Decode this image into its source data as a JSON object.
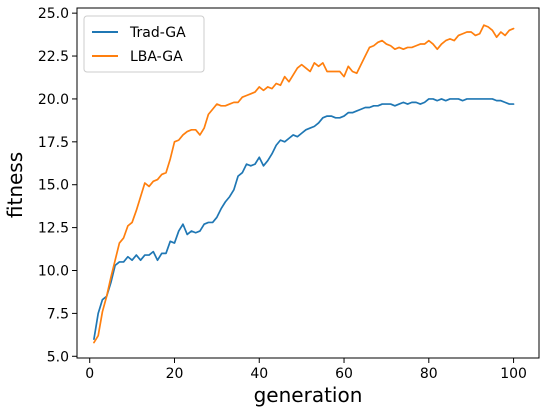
{
  "chart_data": {
    "type": "line",
    "title": "",
    "xlabel": "generation",
    "ylabel": "fitness",
    "xlim": [
      -3,
      106
    ],
    "ylim": [
      4.9,
      25.3
    ],
    "xticks": [
      0,
      20,
      40,
      60,
      80,
      100
    ],
    "yticks": [
      5.0,
      7.5,
      10.0,
      12.5,
      15.0,
      17.5,
      20.0,
      22.5,
      25.0
    ],
    "grid": false,
    "legend": "upper left",
    "x": [
      1,
      2,
      3,
      4,
      5,
      6,
      7,
      8,
      9,
      10,
      11,
      12,
      13,
      14,
      15,
      16,
      17,
      18,
      19,
      20,
      21,
      22,
      23,
      24,
      25,
      26,
      27,
      28,
      29,
      30,
      31,
      32,
      33,
      34,
      35,
      36,
      37,
      38,
      39,
      40,
      41,
      42,
      43,
      44,
      45,
      46,
      47,
      48,
      49,
      50,
      51,
      52,
      53,
      54,
      55,
      56,
      57,
      58,
      59,
      60,
      61,
      62,
      63,
      64,
      65,
      66,
      67,
      68,
      69,
      70,
      71,
      72,
      73,
      74,
      75,
      76,
      77,
      78,
      79,
      80,
      81,
      82,
      83,
      84,
      85,
      86,
      87,
      88,
      89,
      90,
      91,
      92,
      93,
      94,
      95,
      96,
      97,
      98,
      99,
      100
    ],
    "series": [
      {
        "name": "Trad-GA",
        "color": "#1f77b4",
        "values": [
          6.0,
          7.5,
          8.3,
          8.5,
          9.3,
          10.3,
          10.5,
          10.5,
          10.8,
          10.6,
          10.9,
          10.6,
          10.9,
          10.9,
          11.1,
          10.6,
          11.0,
          11.0,
          11.7,
          11.6,
          12.3,
          12.7,
          12.1,
          12.3,
          12.2,
          12.3,
          12.7,
          12.8,
          12.8,
          13.1,
          13.6,
          14.0,
          14.3,
          14.7,
          15.5,
          15.7,
          16.2,
          16.1,
          16.2,
          16.6,
          16.1,
          16.4,
          16.8,
          17.3,
          17.6,
          17.5,
          17.7,
          17.9,
          17.8,
          18.0,
          18.2,
          18.3,
          18.4,
          18.6,
          18.9,
          19.0,
          19.0,
          18.9,
          18.9,
          19.0,
          19.2,
          19.2,
          19.3,
          19.4,
          19.5,
          19.5,
          19.6,
          19.6,
          19.7,
          19.7,
          19.7,
          19.6,
          19.7,
          19.8,
          19.7,
          19.8,
          19.8,
          19.7,
          19.8,
          20.0,
          20.0,
          19.9,
          20.0,
          19.9,
          20.0,
          20.0,
          20.0,
          19.9,
          20.0,
          20.0,
          20.0,
          20.0,
          20.0,
          20.0,
          20.0,
          19.9,
          19.9,
          19.8,
          19.7,
          19.7
        ]
      },
      {
        "name": "LBA-GA",
        "color": "#ff7f0e",
        "values": [
          5.8,
          6.2,
          7.6,
          8.5,
          9.6,
          10.6,
          11.6,
          11.9,
          12.6,
          12.8,
          13.5,
          14.3,
          15.1,
          14.9,
          15.2,
          15.3,
          15.6,
          15.7,
          16.5,
          17.5,
          17.6,
          17.9,
          18.1,
          18.2,
          18.2,
          17.9,
          18.3,
          19.1,
          19.4,
          19.7,
          19.6,
          19.6,
          19.7,
          19.8,
          19.8,
          20.1,
          20.2,
          20.3,
          20.4,
          20.7,
          20.5,
          20.7,
          20.6,
          20.9,
          20.8,
          21.3,
          21.0,
          21.4,
          21.8,
          22.0,
          21.8,
          21.6,
          22.1,
          21.9,
          22.1,
          21.6,
          21.6,
          21.6,
          21.6,
          21.3,
          21.9,
          21.6,
          21.5,
          22.0,
          22.5,
          23.0,
          23.1,
          23.3,
          23.4,
          23.2,
          23.1,
          22.9,
          23.0,
          22.9,
          23.0,
          23.0,
          23.1,
          23.2,
          23.2,
          23.4,
          23.2,
          22.9,
          23.2,
          23.4,
          23.5,
          23.4,
          23.7,
          23.8,
          23.9,
          23.9,
          23.7,
          23.8,
          24.3,
          24.2,
          24.0,
          23.6,
          23.9,
          23.7,
          24.0,
          24.1
        ]
      }
    ]
  }
}
